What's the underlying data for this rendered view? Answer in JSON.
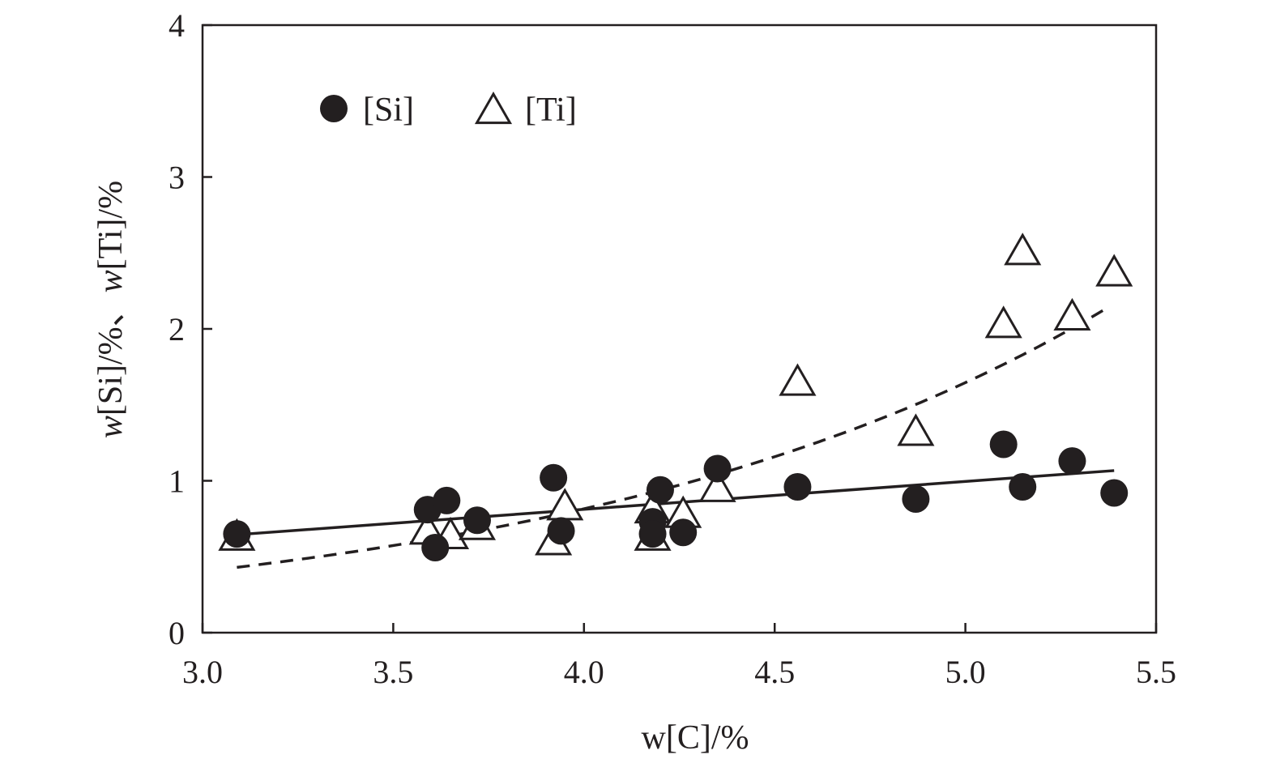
{
  "chart_data": {
    "type": "scatter",
    "title": "",
    "xlabel": "w[C]/%",
    "ylabel": "w[Si]/%、w[Ti]/%",
    "xlim": [
      3.0,
      5.5
    ],
    "ylim": [
      0,
      4
    ],
    "xticks": [
      "3.0",
      "3.5",
      "4.0",
      "4.5",
      "5.0",
      "5.5"
    ],
    "yticks": [
      "0",
      "1",
      "2",
      "3",
      "4"
    ],
    "grid": false,
    "legend_position": "top-left",
    "series": [
      {
        "name": "[Si]",
        "marker": "filled-circle",
        "color": "#231f20",
        "points": [
          [
            3.09,
            0.65
          ],
          [
            3.59,
            0.81
          ],
          [
            3.61,
            0.56
          ],
          [
            3.64,
            0.87
          ],
          [
            3.72,
            0.74
          ],
          [
            3.92,
            1.02
          ],
          [
            3.94,
            0.67
          ],
          [
            4.18,
            0.73
          ],
          [
            4.18,
            0.65
          ],
          [
            4.2,
            0.94
          ],
          [
            4.26,
            0.66
          ],
          [
            4.35,
            1.08
          ],
          [
            4.56,
            0.96
          ],
          [
            4.87,
            0.88
          ],
          [
            5.1,
            1.24
          ],
          [
            5.15,
            0.96
          ],
          [
            5.28,
            1.13
          ],
          [
            5.39,
            0.92
          ]
        ],
        "trend": {
          "type": "linear",
          "style": "solid",
          "from": [
            3.09,
            0.645
          ],
          "to": [
            5.39,
            1.067
          ]
        }
      },
      {
        "name": "[Ti]",
        "marker": "open-triangle",
        "color": "#231f20",
        "points": [
          [
            3.09,
            0.62
          ],
          [
            3.59,
            0.66
          ],
          [
            3.65,
            0.63
          ],
          [
            3.72,
            0.69
          ],
          [
            3.92,
            0.59
          ],
          [
            3.95,
            0.82
          ],
          [
            4.18,
            0.8
          ],
          [
            4.18,
            0.62
          ],
          [
            4.26,
            0.77
          ],
          [
            4.35,
            0.94
          ],
          [
            4.56,
            1.64
          ],
          [
            4.87,
            1.31
          ],
          [
            5.1,
            2.02
          ],
          [
            5.15,
            2.5
          ],
          [
            5.28,
            2.07
          ],
          [
            5.39,
            2.36
          ]
        ],
        "trend": {
          "type": "exponential",
          "style": "dashed",
          "from": [
            3.09,
            0.43
          ],
          "to": [
            5.38,
            2.15
          ]
        }
      }
    ]
  }
}
